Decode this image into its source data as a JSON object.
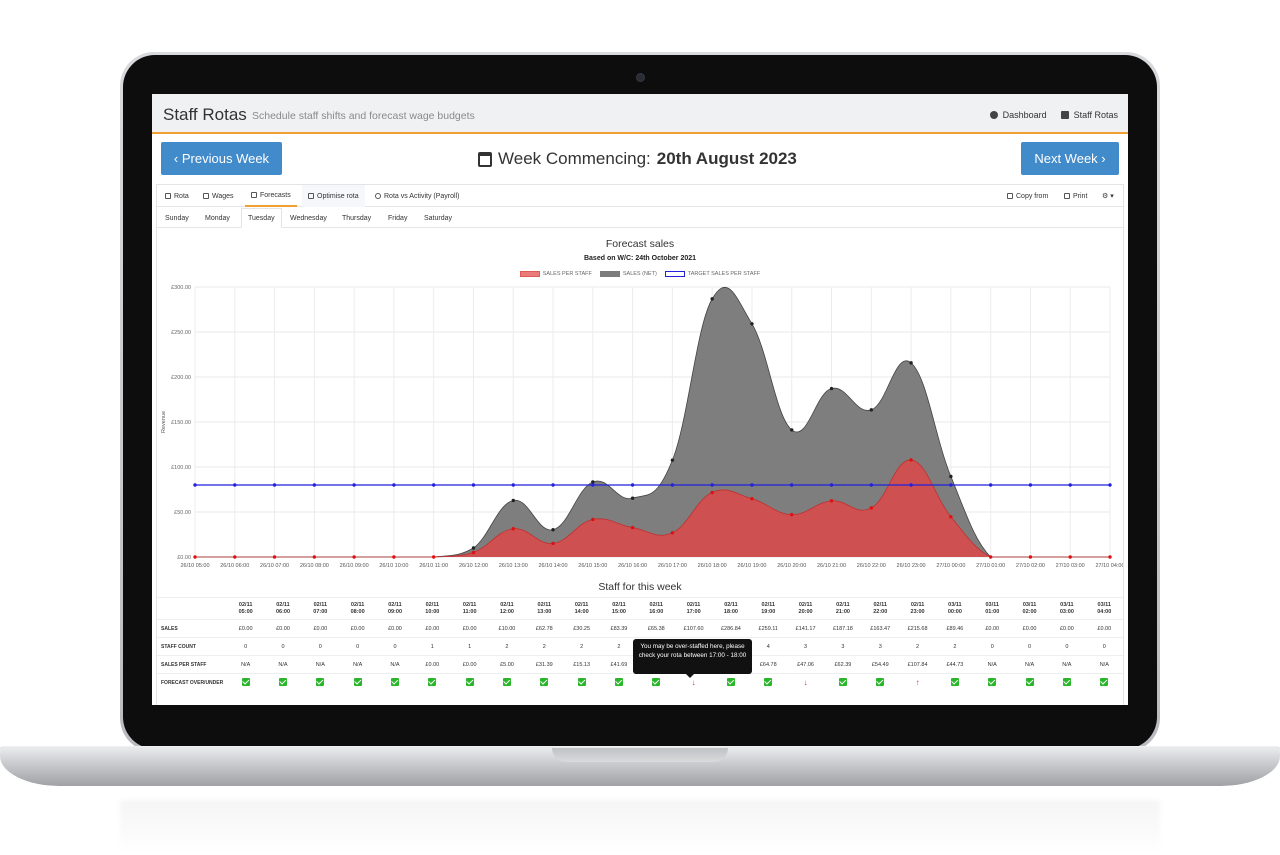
{
  "app": {
    "title": "Staff Rotas",
    "subtitle": "Schedule staff shifts and forecast wage budgets"
  },
  "nav": {
    "dashboard": "Dashboard",
    "staff_rotas": "Staff Rotas"
  },
  "week": {
    "prev": "Previous Week",
    "next": "Next Week",
    "label": "Week Commencing:",
    "date": "20th August 2023"
  },
  "tabs": {
    "rota": "Rota",
    "wages": "Wages",
    "forecasts": "Forecasts",
    "optimise": "Optimise rota",
    "rota_vs": "Rota vs Activity (Payroll)",
    "copy": "Copy from",
    "print": "Print",
    "gear": "⚙ ▾"
  },
  "days": [
    "Sunday",
    "Monday",
    "Tuesday",
    "Wednesday",
    "Thursday",
    "Friday",
    "Saturday"
  ],
  "active_day": "Tuesday",
  "chart_data": {
    "type": "area",
    "title": "Forecast sales",
    "subtitle": "Based on W/C: 24th October 2021",
    "ylabel": "Revenue",
    "ylim": [
      0,
      300
    ],
    "yticks": [
      "£0.00",
      "£50.00",
      "£100.00",
      "£150.00",
      "£200.00",
      "£250.00",
      "£300.00"
    ],
    "x": [
      "26/10 05:00",
      "26/10 06:00",
      "26/10 07:00",
      "26/10 08:00",
      "26/10 09:00",
      "26/10 10:00",
      "26/10 11:00",
      "26/10 12:00",
      "26/10 13:00",
      "26/10 14:00",
      "26/10 15:00",
      "26/10 16:00",
      "26/10 17:00",
      "26/10 18:00",
      "26/10 19:00",
      "26/10 20:00",
      "26/10 21:00",
      "26/10 22:00",
      "26/10 23:00",
      "27/10 00:00",
      "27/10 01:00",
      "27/10 02:00",
      "27/10 03:00",
      "27/10 04:00"
    ],
    "series": [
      {
        "name": "SALES PER STAFF",
        "color": "#e05a5a",
        "values": [
          0,
          0,
          0,
          0,
          0,
          0,
          0,
          5,
          31.4,
          15.1,
          41.7,
          32.7,
          26.9,
          71.7,
          64.8,
          47.1,
          62.4,
          54.5,
          107.8,
          44.7,
          0,
          0,
          0,
          0
        ]
      },
      {
        "name": "SALES (NET)",
        "color": "#7a7a7a",
        "values": [
          0,
          0,
          0,
          0,
          0,
          0,
          0,
          10,
          62.8,
          30.3,
          83.4,
          65.4,
          107.6,
          286.8,
          259.1,
          141.2,
          187.2,
          163.5,
          215.7,
          89.5,
          0,
          0,
          0,
          0
        ]
      },
      {
        "name": "TARGET SALES PER STAFF",
        "color": "#2222dd",
        "values": [
          80,
          80,
          80,
          80,
          80,
          80,
          80,
          80,
          80,
          80,
          80,
          80,
          80,
          80,
          80,
          80,
          80,
          80,
          80,
          80,
          80,
          80,
          80,
          80
        ]
      }
    ],
    "legend_position": "top",
    "grid": true
  },
  "staff": {
    "title": "Staff for this week",
    "cols": [
      [
        "02/11",
        "05:00"
      ],
      [
        "02/11",
        "06:00"
      ],
      [
        "02/11",
        "07:00"
      ],
      [
        "02/11",
        "08:00"
      ],
      [
        "02/11",
        "09:00"
      ],
      [
        "02/11",
        "10:00"
      ],
      [
        "02/11",
        "11:00"
      ],
      [
        "02/11",
        "12:00"
      ],
      [
        "02/11",
        "13:00"
      ],
      [
        "02/11",
        "14:00"
      ],
      [
        "02/11",
        "15:00"
      ],
      [
        "02/11",
        "16:00"
      ],
      [
        "02/11",
        "17:00"
      ],
      [
        "02/11",
        "18:00"
      ],
      [
        "02/11",
        "19:00"
      ],
      [
        "02/11",
        "20:00"
      ],
      [
        "02/11",
        "21:00"
      ],
      [
        "02/11",
        "22:00"
      ],
      [
        "02/11",
        "23:00"
      ],
      [
        "03/11",
        "00:00"
      ],
      [
        "03/11",
        "01:00"
      ],
      [
        "03/11",
        "02:00"
      ],
      [
        "03/11",
        "03:00"
      ],
      [
        "03/11",
        "04:00"
      ]
    ],
    "rows": [
      {
        "label": "SALES",
        "cells": [
          "£0.00",
          "£0.00",
          "£0.00",
          "£0.00",
          "£0.00",
          "£0.00",
          "£0.00",
          "£10.00",
          "£62.78",
          "£30.25",
          "£83.39",
          "£65.38",
          "£107.60",
          "£286.84",
          "£259.11",
          "£141.17",
          "£187.18",
          "£163.47",
          "£215.68",
          "£89.46",
          "£0.00",
          "£0.00",
          "£0.00",
          "£0.00"
        ]
      },
      {
        "label": "STAFF COUNT",
        "cells": [
          "0",
          "0",
          "0",
          "0",
          "0",
          "1",
          "1",
          "2",
          "2",
          "2",
          "2",
          "",
          "",
          "",
          "4",
          "3",
          "3",
          "3",
          "2",
          "2",
          "0",
          "0",
          "0",
          "0"
        ]
      },
      {
        "label": "SALES PER STAFF",
        "cells": [
          "N/A",
          "N/A",
          "N/A",
          "N/A",
          "N/A",
          "£0.00",
          "£0.00",
          "£5.00",
          "£31.39",
          "£15.13",
          "£41.69",
          "",
          "",
          "",
          "£64.78",
          "£47.06",
          "£62.39",
          "£54.49",
          "£107.84",
          "£44.73",
          "N/A",
          "N/A",
          "N/A",
          "N/A"
        ]
      },
      {
        "label": "FORECAST OVER/UNDER",
        "cells": [
          "ok",
          "ok",
          "ok",
          "ok",
          "ok",
          "ok",
          "ok",
          "ok",
          "ok",
          "ok",
          "ok",
          "ok",
          "down",
          "ok",
          "ok",
          "down",
          "ok",
          "ok",
          "up",
          "ok",
          "ok",
          "ok",
          "ok",
          "ok"
        ]
      }
    ],
    "tooltip": "You may be over-staffed here, please check your rota between 17:00 - 18:00"
  }
}
